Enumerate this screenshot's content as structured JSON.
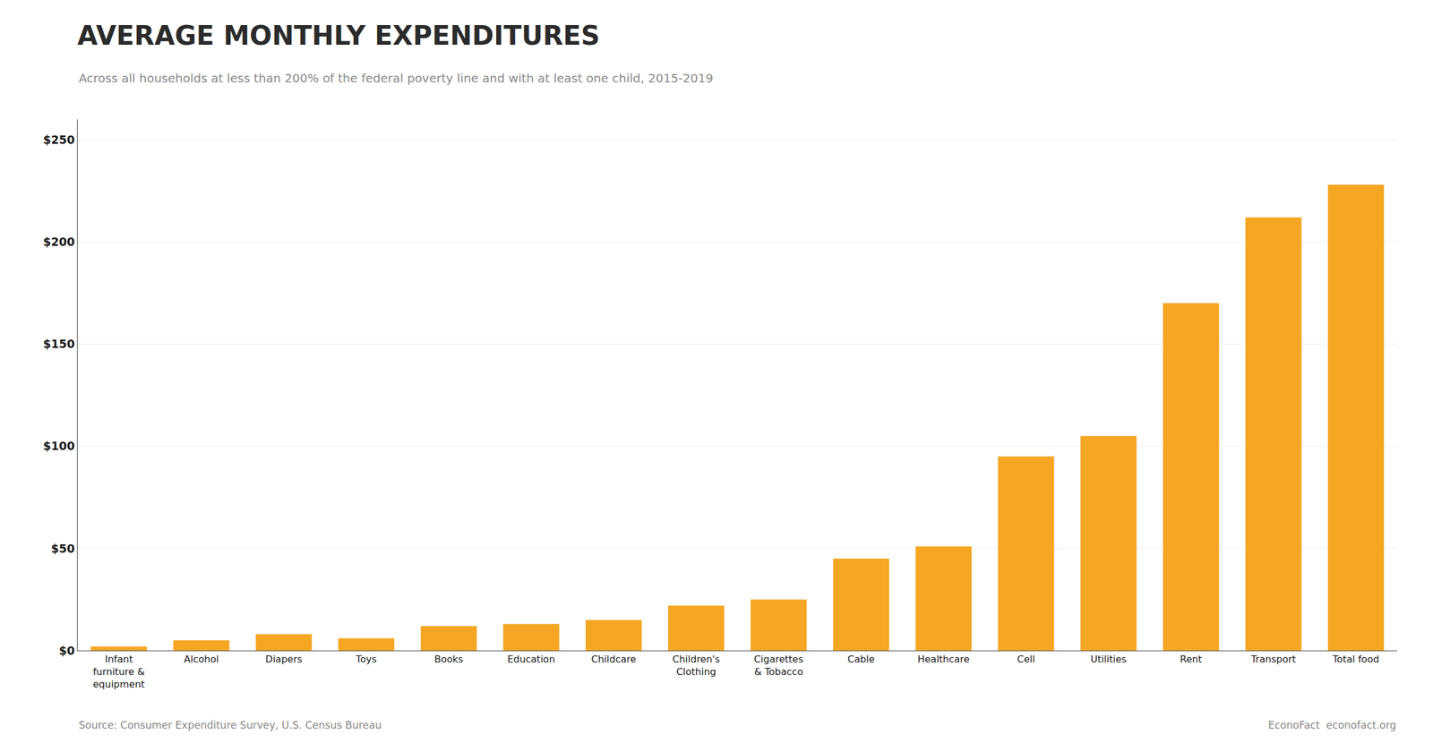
{
  "chart_data": {
    "type": "bar",
    "title": "AVERAGE MONTHLY EXPENDITURES",
    "subtitle": "Across all households at less than 200% of the federal poverty line and with at least one child, 2015-2019",
    "categories": [
      "Infant\nfurniture &\nequipment",
      "Alcohol",
      "Diapers",
      "Toys",
      "Books",
      "Education",
      "Childcare",
      "Children's\nClothing",
      "Cigarettes\n& Tobacco",
      "Cable",
      "Healthcare",
      "Cell",
      "Utilities",
      "Rent",
      "Transport",
      "Total food"
    ],
    "values": [
      2,
      5,
      8,
      6,
      12,
      13,
      15,
      22,
      25,
      45,
      51,
      95,
      105,
      170,
      212,
      228
    ],
    "color": "#F5A623",
    "ylim": [
      0,
      260
    ],
    "yticks": [
      {
        "value": 0,
        "label": "$0"
      },
      {
        "value": 50,
        "label": "$50"
      },
      {
        "value": 100,
        "label": "$100"
      },
      {
        "value": 150,
        "label": "$150"
      },
      {
        "value": 200,
        "label": "$200"
      },
      {
        "value": 250,
        "label": "$250"
      }
    ],
    "grid": true,
    "annotations": [
      "Source: Consumer Expenditure Survey, U.S. Census Bureau",
      "EconoFact  econofact.org"
    ]
  }
}
